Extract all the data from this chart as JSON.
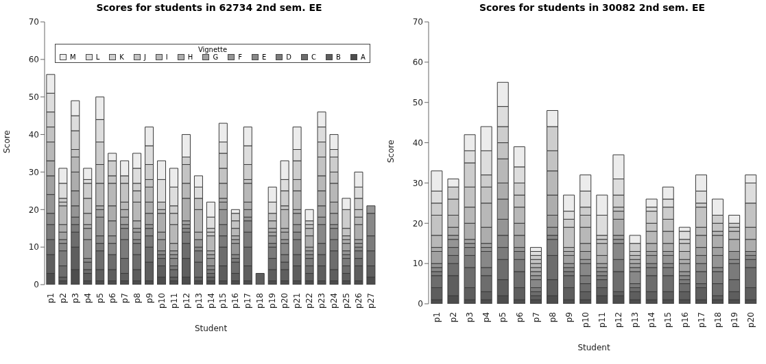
{
  "chart_data": [
    {
      "type": "bar",
      "stacked": true,
      "title": "Scores for students in 62734 2nd sem. EE",
      "xlabel": "Student",
      "ylabel": "Score",
      "legend": "top",
      "legend_title": "Vignette",
      "categories": [
        "p1",
        "p2",
        "p3",
        "p4",
        "p5",
        "p6",
        "p7",
        "p8",
        "p9",
        "p10",
        "p11",
        "p12",
        "p13",
        "p14",
        "p15",
        "p16",
        "p17",
        "p18",
        "p19",
        "p20",
        "p21",
        "p22",
        "p23",
        "p24",
        "p25",
        "p26",
        "p27"
      ],
      "ylim": [
        0,
        70
      ],
      "yticks": [
        0,
        10,
        20,
        30,
        40,
        50,
        60,
        70
      ],
      "series": [
        {
          "name": "A",
          "color": "#4d4d4d",
          "values": [
            3,
            1,
            4,
            1,
            1,
            1,
            1,
            1,
            1,
            2,
            1,
            2,
            1,
            1,
            1,
            1,
            1,
            0,
            1,
            1,
            1,
            1,
            1,
            1,
            1,
            1,
            2
          ]
        },
        {
          "name": "B",
          "color": "#5e5e5e",
          "values": [
            5,
            1,
            6,
            2,
            3,
            3,
            2,
            3,
            5,
            3,
            1,
            5,
            1,
            1,
            4,
            2,
            4,
            3,
            3,
            3,
            4,
            2,
            4,
            3,
            2,
            4,
            3
          ]
        },
        {
          "name": "C",
          "color": "#6d6d6d",
          "values": [
            4,
            3,
            4,
            1,
            5,
            4,
            4,
            4,
            4,
            2,
            2,
            4,
            4,
            1,
            5,
            3,
            5,
            0,
            3,
            2,
            3,
            2,
            3,
            5,
            2,
            2,
            4
          ]
        },
        {
          "name": "D",
          "color": "#7b7b7b",
          "values": [
            4,
            4,
            2,
            2,
            2,
            0,
            5,
            3,
            3,
            1,
            1,
            3,
            3,
            1,
            3,
            1,
            4,
            0,
            3,
            2,
            4,
            2,
            3,
            3,
            2,
            2,
            4
          ]
        },
        {
          "name": "E",
          "color": "#888888",
          "values": [
            3,
            2,
            2,
            1,
            2,
            3,
            3,
            1,
            2,
            1,
            2,
            1,
            1,
            1,
            3,
            1,
            3,
            0,
            1,
            3,
            2,
            1,
            5,
            3,
            1,
            1,
            6
          ]
        },
        {
          "name": "F",
          "color": "#959595",
          "values": [
            5,
            1,
            3,
            5,
            5,
            2,
            1,
            2,
            1,
            3,
            1,
            1,
            2,
            2,
            4,
            3,
            1,
            0,
            2,
            1,
            2,
            1,
            2,
            1,
            1,
            1,
            2
          ]
        },
        {
          "name": "G",
          "color": "#a1a1a1",
          "values": [
            5,
            2,
            4,
            3,
            2,
            4,
            2,
            1,
            3,
            2,
            1,
            1,
            0,
            1,
            2,
            1,
            2,
            0,
            1,
            2,
            3,
            1,
            3,
            3,
            2,
            1,
            0
          ]
        },
        {
          "name": "H",
          "color": "#adadad",
          "values": [
            4,
            2,
            5,
            1,
            1,
            4,
            2,
            2,
            3,
            5,
            2,
            6,
            2,
            1,
            1,
            1,
            2,
            0,
            1,
            1,
            1,
            3,
            4,
            3,
            1,
            4,
            0
          ]
        },
        {
          "name": "I",
          "color": "#b8b8b8",
          "values": [
            5,
            5,
            4,
            3,
            6,
            6,
            2,
            5,
            4,
            1,
            5,
            4,
            6,
            4,
            4,
            2,
            5,
            0,
            2,
            5,
            5,
            2,
            4,
            5,
            1,
            2,
            0
          ]
        },
        {
          "name": "J",
          "color": "#c3c3c3",
          "values": [
            4,
            1,
            2,
            4,
            5,
            2,
            5,
            3,
            2,
            2,
            3,
            5,
            3,
            1,
            4,
            2,
            1,
            0,
            2,
            1,
            3,
            1,
            5,
            3,
            2,
            2,
            0
          ]
        },
        {
          "name": "K",
          "color": "#cdcdcd",
          "values": [
            4,
            1,
            5,
            4,
            6,
            4,
            2,
            2,
            4,
            0,
            2,
            2,
            0,
            1,
            4,
            2,
            4,
            0,
            0,
            4,
            5,
            1,
            4,
            4,
            5,
            3,
            0
          ]
        },
        {
          "name": "L",
          "color": "#dddddd",
          "values": [
            5,
            4,
            4,
            1,
            6,
            0,
            0,
            4,
            5,
            6,
            5,
            0,
            3,
            3,
            3,
            0,
            5,
            0,
            3,
            3,
            3,
            0,
            4,
            2,
            0,
            3,
            0
          ]
        },
        {
          "name": "M",
          "color": "#ececec",
          "values": [
            5,
            4,
            4,
            3,
            6,
            2,
            4,
            4,
            5,
            5,
            5,
            6,
            3,
            4,
            5,
            1,
            5,
            0,
            4,
            5,
            6,
            3,
            4,
            4,
            3,
            4,
            0
          ]
        }
      ]
    },
    {
      "type": "bar",
      "stacked": true,
      "title": "Scores for students in 30082 2nd sem. EE",
      "xlabel": "Student",
      "ylabel": "Score",
      "categories": [
        "p1",
        "p2",
        "p3",
        "p4",
        "p5",
        "p6",
        "p7",
        "p8",
        "p9",
        "p10",
        "p11",
        "p12",
        "p13",
        "p14",
        "p15",
        "p16",
        "p17",
        "p18",
        "p19",
        "p20"
      ],
      "ylim": [
        0,
        70
      ],
      "yticks": [
        0,
        10,
        20,
        30,
        40,
        50,
        60,
        70
      ],
      "series": [
        {
          "color": "#4d4d4d",
          "values": [
            1,
            2,
            1,
            1,
            2,
            1,
            1,
            2,
            1,
            1,
            2,
            2,
            1,
            1,
            1,
            1,
            1,
            1,
            1,
            1
          ]
        },
        {
          "color": "#5e5e5e",
          "values": [
            3,
            5,
            3,
            2,
            4,
            3,
            1,
            4,
            3,
            2,
            2,
            1,
            2,
            2,
            2,
            2,
            3,
            1,
            2,
            3
          ]
        },
        {
          "color": "#6d6d6d",
          "values": [
            3,
            3,
            5,
            4,
            5,
            4,
            1,
            6,
            3,
            2,
            2,
            5,
            1,
            4,
            4,
            2,
            1,
            3,
            3,
            5
          ]
        },
        {
          "color": "#7b7b7b",
          "values": [
            1,
            2,
            3,
            2,
            3,
            3,
            1,
            4,
            1,
            2,
            1,
            3,
            1,
            2,
            2,
            1,
            3,
            3,
            4,
            2
          ]
        },
        {
          "color": "#888888",
          "values": [
            1,
            2,
            2,
            4,
            3,
            2,
            2,
            1,
            1,
            3,
            1,
            4,
            3,
            1,
            1,
            1,
            2,
            1,
            1,
            1
          ]
        },
        {
          "color": "#959595",
          "values": [
            1,
            2,
            1,
            1,
            4,
            1,
            1,
            2,
            1,
            1,
            1,
            1,
            1,
            2,
            2,
            1,
            2,
            3,
            2,
            1
          ]
        },
        {
          "color": "#a1a1a1",
          "values": [
            3,
            1,
            1,
            1,
            5,
            3,
            1,
            3,
            2,
            2,
            1,
            1,
            1,
            1,
            1,
            2,
            2,
            2,
            0,
            0
          ]
        },
        {
          "color": "#adadad",
          "values": [
            1,
            2,
            4,
            4,
            4,
            3,
            1,
            5,
            1,
            2,
            2,
            4,
            1,
            2,
            2,
            1,
            3,
            3,
            3,
            3
          ]
        },
        {
          "color": "#b8b8b8",
          "values": [
            3,
            3,
            4,
            6,
            6,
            4,
            1,
            6,
            1,
            4,
            3,
            2,
            1,
            3,
            3,
            2,
            2,
            1,
            2,
            3
          ]
        },
        {
          "color": "#c3c3c3",
          "values": [
            5,
            4,
            5,
            4,
            4,
            3,
            1,
            5,
            5,
            3,
            1,
            1,
            1,
            2,
            3,
            2,
            5,
            2,
            1,
            6
          ]
        },
        {
          "color": "#cdcdcd",
          "values": [
            3,
            3,
            6,
            3,
            4,
            3,
            1,
            6,
            2,
            2,
            1,
            3,
            2,
            3,
            3,
            1,
            1,
            2,
            1,
            0
          ]
        },
        {
          "color": "#dddddd",
          "values": [
            3,
            0,
            3,
            6,
            5,
            4,
            1,
            0,
            2,
            4,
            5,
            4,
            0,
            1,
            2,
            2,
            3,
            0,
            0,
            5
          ]
        },
        {
          "color": "#ececec",
          "values": [
            5,
            2,
            4,
            6,
            6,
            5,
            1,
            4,
            4,
            4,
            5,
            6,
            2,
            2,
            3,
            1,
            4,
            4,
            2,
            2
          ]
        }
      ]
    }
  ]
}
